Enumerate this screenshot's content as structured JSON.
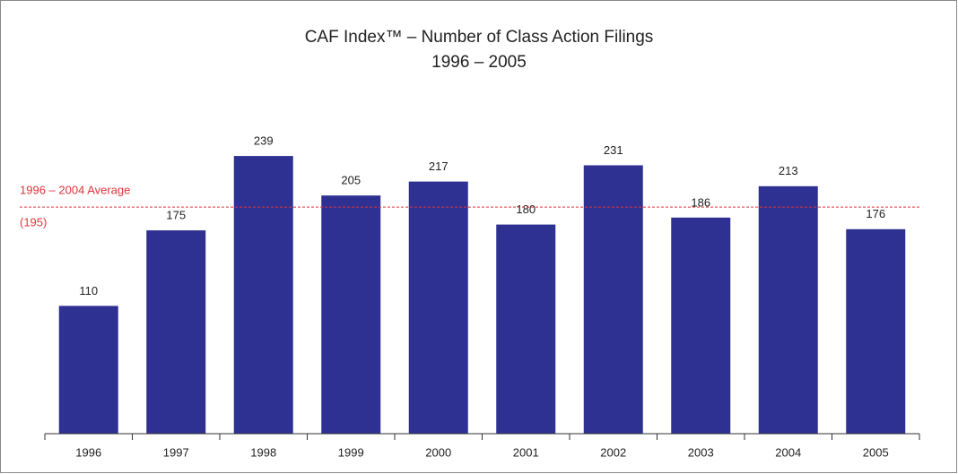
{
  "chart_data": {
    "type": "bar",
    "title": "CAF Index™ – Number of Class Action Filings",
    "subtitle": "1996 – 2005",
    "categories": [
      "1996",
      "1997",
      "1998",
      "1999",
      "2000",
      "2001",
      "2002",
      "2003",
      "2004",
      "2005"
    ],
    "values": [
      110,
      175,
      239,
      205,
      217,
      180,
      231,
      186,
      213,
      176
    ],
    "color": "#2e3192",
    "ylim": [
      0,
      300
    ],
    "reference_line": {
      "value": 195,
      "label": "1996 – 2004 Average",
      "value_label": "(195)",
      "color": "#e0343a"
    }
  }
}
